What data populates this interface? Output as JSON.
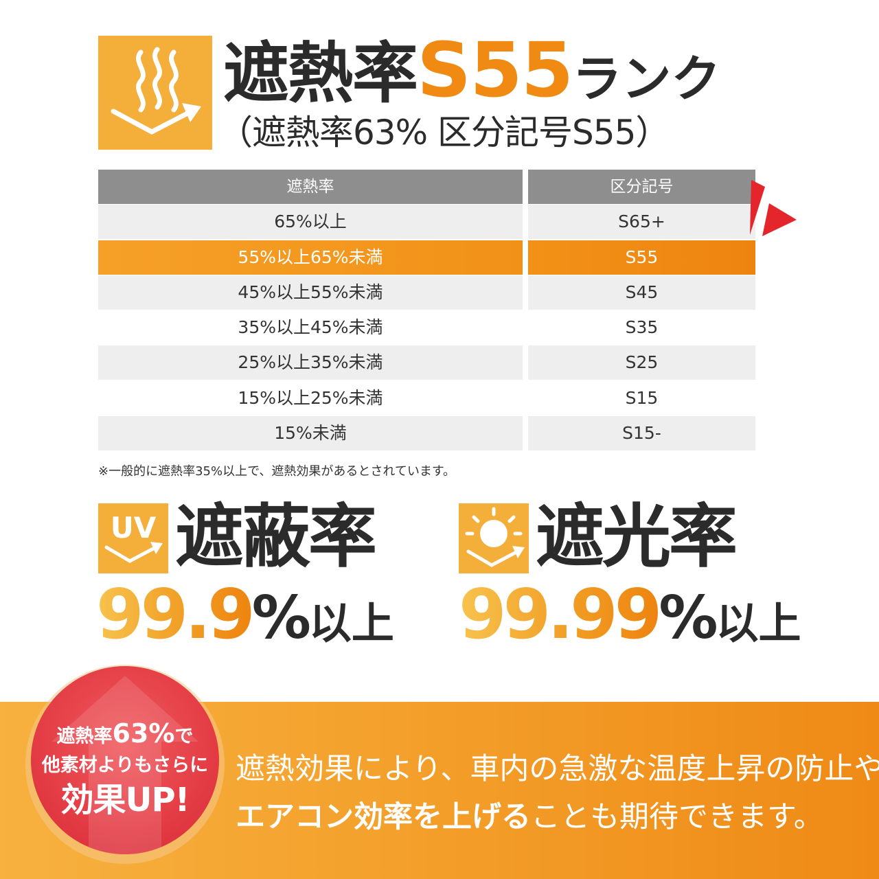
{
  "header": {
    "title_main": "遮熱率",
    "title_code": "S55",
    "title_suffix": "ランク",
    "subtitle": "（遮熱率63% 区分記号S55）",
    "icon": "heat-waves-icon",
    "accent_color": "#f08a12",
    "icon_box_color": "#f4ae3a"
  },
  "table": {
    "headers": [
      "遮熱率",
      "区分記号"
    ],
    "rows": [
      {
        "range": "65%以上",
        "code": "S65+"
      },
      {
        "range": "55%以上65%未満",
        "code": "S55"
      },
      {
        "range": "45%以上55%未満",
        "code": "S45"
      },
      {
        "range": "35%以上45%未満",
        "code": "S35"
      },
      {
        "range": "25%以上35%未満",
        "code": "S25"
      },
      {
        "range": "15%以上25%未満",
        "code": "S15"
      },
      {
        "range": "15%未満",
        "code": "S15-"
      }
    ],
    "highlighted_row": 1,
    "highlight_color": "#f29117",
    "header_color": "#8e8e8e",
    "note": "※一般的に遮熱率35%以上で、遮熱効果があるとされています。"
  },
  "uv": {
    "icon": "uv-icon",
    "icon_text": "UV",
    "title": "遮蔽率",
    "value": "99.9",
    "percent": "%",
    "suffix": "以上"
  },
  "light": {
    "icon": "sun-icon",
    "title": "遮光率",
    "value": "99.99",
    "percent": "%",
    "suffix": "以上"
  },
  "badge": {
    "line1_prefix": "遮熱率",
    "line1_value": "63%",
    "line1_suffix": "で",
    "line2": "他素材よりもさらに",
    "line3": "効果UP!",
    "color": "#e43c45"
  },
  "description": {
    "line1": "遮熱効果により、車内の急激な温度上昇の防止や",
    "line2_strong": "エアコン効率を上げる",
    "line2_rest": "ことも期待できます。"
  }
}
